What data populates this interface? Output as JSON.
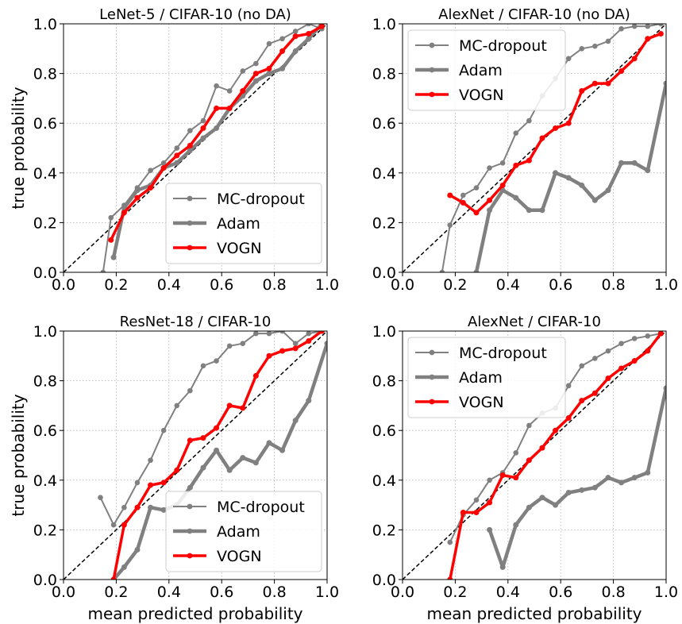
{
  "figure": {
    "ylabel": "true probability",
    "xlabel": "mean predicted probability",
    "ticks": [
      "0.0",
      "0.2",
      "0.4",
      "0.6",
      "0.8",
      "1.0"
    ],
    "legend": [
      "MC-dropout",
      "Adam",
      "VOGN"
    ]
  },
  "chart_data": [
    {
      "type": "line",
      "title": "LeNet-5 / CIFAR-10 (no DA)",
      "xlabel": "",
      "ylabel": "true probability",
      "xlim": [
        0,
        1
      ],
      "ylim": [
        0,
        1
      ],
      "grid": true,
      "legend_position": "lower-right",
      "reference_line": "diagonal y = x (dashed)",
      "series": [
        {
          "name": "MC-dropout",
          "color": "#808080",
          "x": [
            0.15,
            0.18,
            0.23,
            0.28,
            0.33,
            0.38,
            0.43,
            0.48,
            0.53,
            0.58,
            0.63,
            0.68,
            0.73,
            0.78,
            0.83,
            0.88,
            0.93,
            0.98
          ],
          "y": [
            0.0,
            0.22,
            0.27,
            0.34,
            0.41,
            0.44,
            0.5,
            0.57,
            0.61,
            0.75,
            0.73,
            0.81,
            0.84,
            0.92,
            0.94,
            0.97,
            1.0,
            0.98
          ]
        },
        {
          "name": "Adam",
          "color": "#808080",
          "x": [
            0.19,
            0.23,
            0.28,
            0.33,
            0.38,
            0.43,
            0.48,
            0.53,
            0.58,
            0.63,
            0.68,
            0.73,
            0.78,
            0.83,
            0.88,
            0.93,
            0.98
          ],
          "y": [
            0.06,
            0.26,
            0.33,
            0.35,
            0.42,
            0.44,
            0.49,
            0.54,
            0.58,
            0.66,
            0.71,
            0.77,
            0.8,
            0.82,
            0.89,
            0.94,
            1.0
          ]
        },
        {
          "name": "VOGN",
          "color": "#ff0000",
          "x": [
            0.18,
            0.23,
            0.28,
            0.33,
            0.38,
            0.43,
            0.48,
            0.53,
            0.58,
            0.63,
            0.68,
            0.73,
            0.78,
            0.83,
            0.88,
            0.93,
            0.98
          ],
          "y": [
            0.13,
            0.24,
            0.3,
            0.34,
            0.42,
            0.47,
            0.51,
            0.58,
            0.66,
            0.66,
            0.73,
            0.8,
            0.82,
            0.89,
            0.95,
            0.96,
            0.99
          ]
        }
      ]
    },
    {
      "type": "line",
      "title": "AlexNet / CIFAR-10 (no DA)",
      "xlabel": "",
      "ylabel": "",
      "xlim": [
        0,
        1
      ],
      "ylim": [
        0,
        1
      ],
      "grid": true,
      "legend_position": "upper-left",
      "reference_line": "diagonal y = x (dashed)",
      "series": [
        {
          "name": "MC-dropout",
          "color": "#808080",
          "x": [
            0.15,
            0.18,
            0.23,
            0.28,
            0.33,
            0.38,
            0.43,
            0.48,
            0.53,
            0.58,
            0.63,
            0.68,
            0.73,
            0.78,
            0.83,
            0.88,
            0.93,
            0.98
          ],
          "y": [
            0.0,
            0.19,
            0.31,
            0.34,
            0.42,
            0.44,
            0.56,
            0.61,
            0.71,
            0.78,
            0.86,
            0.9,
            0.91,
            0.93,
            0.98,
            0.99,
            0.99,
            1.0
          ]
        },
        {
          "name": "Adam",
          "color": "#808080",
          "x": [
            0.28,
            0.33,
            0.38,
            0.43,
            0.48,
            0.53,
            0.58,
            0.63,
            0.68,
            0.73,
            0.78,
            0.83,
            0.88,
            0.93,
            1.0
          ],
          "y": [
            0.0,
            0.25,
            0.33,
            0.3,
            0.25,
            0.25,
            0.4,
            0.38,
            0.35,
            0.29,
            0.33,
            0.44,
            0.44,
            0.41,
            0.76
          ]
        },
        {
          "name": "VOGN",
          "color": "#ff0000",
          "x": [
            0.18,
            0.23,
            0.28,
            0.33,
            0.38,
            0.43,
            0.48,
            0.53,
            0.58,
            0.63,
            0.68,
            0.73,
            0.78,
            0.83,
            0.88,
            0.93,
            0.98
          ],
          "y": [
            0.31,
            0.28,
            0.24,
            0.29,
            0.35,
            0.43,
            0.45,
            0.54,
            0.58,
            0.6,
            0.73,
            0.76,
            0.76,
            0.81,
            0.86,
            0.94,
            0.96
          ]
        }
      ]
    },
    {
      "type": "line",
      "title": "ResNet-18 / CIFAR-10",
      "xlabel": "mean predicted probability",
      "ylabel": "true probability",
      "xlim": [
        0,
        1
      ],
      "ylim": [
        0,
        1
      ],
      "grid": true,
      "legend_position": "lower-right",
      "reference_line": "diagonal y = x (dashed)",
      "series": [
        {
          "name": "MC-dropout",
          "color": "#808080",
          "x": [
            0.14,
            0.19,
            0.23,
            0.28,
            0.33,
            0.38,
            0.43,
            0.48,
            0.53,
            0.58,
            0.63,
            0.68,
            0.73,
            0.78,
            0.83,
            0.88,
            0.93,
            0.98
          ],
          "y": [
            0.33,
            0.22,
            0.29,
            0.39,
            0.48,
            0.6,
            0.7,
            0.76,
            0.86,
            0.88,
            0.94,
            0.95,
            0.99,
            0.99,
            1.0,
            0.95,
            0.99,
            1.0
          ]
        },
        {
          "name": "Adam",
          "color": "#808080",
          "x": [
            0.19,
            0.23,
            0.28,
            0.33,
            0.38,
            0.43,
            0.48,
            0.53,
            0.58,
            0.63,
            0.68,
            0.73,
            0.78,
            0.83,
            0.88,
            0.93,
            1.0
          ],
          "y": [
            0.0,
            0.05,
            0.12,
            0.29,
            0.28,
            0.3,
            0.37,
            0.45,
            0.52,
            0.44,
            0.49,
            0.47,
            0.55,
            0.52,
            0.64,
            0.72,
            0.95
          ]
        },
        {
          "name": "VOGN",
          "color": "#ff0000",
          "x": [
            0.19,
            0.23,
            0.28,
            0.33,
            0.38,
            0.43,
            0.48,
            0.53,
            0.58,
            0.63,
            0.68,
            0.73,
            0.78,
            0.83,
            0.88,
            0.93,
            0.98
          ],
          "y": [
            0.0,
            0.22,
            0.29,
            0.38,
            0.39,
            0.44,
            0.56,
            0.57,
            0.61,
            0.7,
            0.69,
            0.82,
            0.9,
            0.92,
            0.93,
            0.96,
            1.0
          ]
        }
      ]
    },
    {
      "type": "line",
      "title": "AlexNet / CIFAR-10",
      "xlabel": "mean predicted probability",
      "ylabel": "",
      "xlim": [
        0,
        1
      ],
      "ylim": [
        0,
        1
      ],
      "grid": true,
      "legend_position": "upper-left",
      "reference_line": "diagonal y = x (dashed)",
      "series": [
        {
          "name": "MC-dropout",
          "color": "#808080",
          "x": [
            0.18,
            0.23,
            0.28,
            0.33,
            0.38,
            0.43,
            0.48,
            0.53,
            0.58,
            0.63,
            0.68,
            0.73,
            0.78,
            0.83,
            0.88,
            0.93,
            0.98
          ],
          "y": [
            0.15,
            0.26,
            0.32,
            0.4,
            0.43,
            0.51,
            0.62,
            0.67,
            0.69,
            0.78,
            0.86,
            0.89,
            0.92,
            0.95,
            0.97,
            0.98,
            0.99
          ]
        },
        {
          "name": "Adam",
          "color": "#808080",
          "x": [
            0.33,
            0.38,
            0.43,
            0.48,
            0.53,
            0.58,
            0.63,
            0.68,
            0.73,
            0.78,
            0.83,
            0.88,
            0.93,
            1.0
          ],
          "y": [
            0.2,
            0.05,
            0.22,
            0.29,
            0.33,
            0.3,
            0.35,
            0.36,
            0.37,
            0.41,
            0.39,
            0.41,
            0.43,
            0.77
          ]
        },
        {
          "name": "VOGN",
          "color": "#ff0000",
          "x": [
            0.18,
            0.23,
            0.28,
            0.33,
            0.38,
            0.43,
            0.48,
            0.53,
            0.58,
            0.63,
            0.68,
            0.73,
            0.78,
            0.83,
            0.88,
            0.93,
            0.98
          ],
          "y": [
            0.0,
            0.27,
            0.27,
            0.31,
            0.42,
            0.41,
            0.48,
            0.53,
            0.6,
            0.65,
            0.72,
            0.75,
            0.81,
            0.85,
            0.88,
            0.92,
            0.99
          ]
        }
      ]
    }
  ]
}
